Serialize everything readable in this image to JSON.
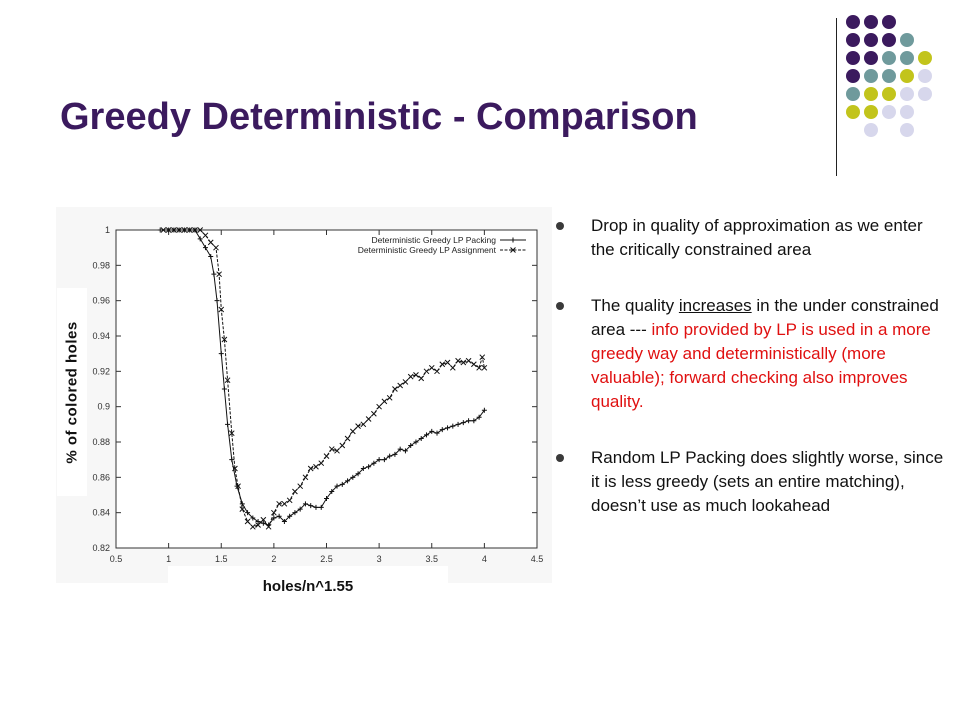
{
  "slide": {
    "title": "Greedy Deterministic - Comparison",
    "accent_colors": [
      "#3b1a5e",
      "#6f9a9c",
      "#c2c41c",
      "#d7d7ec"
    ]
  },
  "bullets": [
    {
      "text": "Drop in quality of approximation as we enter the critically constrained area"
    },
    {
      "pre": "The quality ",
      "underline": "increases",
      "mid": " in the under constrained area --- ",
      "red": "info provided by LP is used in a more greedy way and deterministically (more valuable); forward checking also improves quality."
    },
    {
      "text": "Random LP Packing does slightly worse, since it is less greedy (sets an entire matching), doesn’t use as much lookahead"
    }
  ],
  "chart_data": {
    "type": "line",
    "xlabel": "holes/n^1.55",
    "ylabel": "% of colored holes",
    "xlim": [
      0.5,
      4.5
    ],
    "ylim": [
      0.82,
      1.0
    ],
    "xticks": [
      0.5,
      1,
      1.5,
      2,
      2.5,
      3,
      3.5,
      4,
      4.5
    ],
    "yticks": [
      0.82,
      0.84,
      0.86,
      0.88,
      0.9,
      0.92,
      0.94,
      0.96,
      0.98,
      1
    ],
    "xtick_labels": [
      "0.5",
      "1",
      "1.5",
      "2",
      "2.5",
      "3",
      "3.5",
      "4",
      "4.5"
    ],
    "ytick_labels": [
      "0.82",
      "0.84",
      "0.86",
      "0.88",
      "0.9",
      "0.92",
      "0.94",
      "0.96",
      "0.98",
      "1"
    ],
    "legend_position": "top-right",
    "series": [
      {
        "name": "Deterministic Greedy LP Packing",
        "marker": "plus",
        "points": [
          [
            0.92,
            1.0
          ],
          [
            1.0,
            1.0
          ],
          [
            1.05,
            1.0
          ],
          [
            1.1,
            1.0
          ],
          [
            1.15,
            1.0
          ],
          [
            1.2,
            1.0
          ],
          [
            1.25,
            1.0
          ],
          [
            1.3,
            0.995
          ],
          [
            1.35,
            0.99
          ],
          [
            1.4,
            0.985
          ],
          [
            1.43,
            0.975
          ],
          [
            1.46,
            0.96
          ],
          [
            1.5,
            0.93
          ],
          [
            1.53,
            0.91
          ],
          [
            1.56,
            0.89
          ],
          [
            1.6,
            0.87
          ],
          [
            1.65,
            0.855
          ],
          [
            1.7,
            0.845
          ],
          [
            1.75,
            0.84
          ],
          [
            1.8,
            0.837
          ],
          [
            1.85,
            0.835
          ],
          [
            1.9,
            0.834
          ],
          [
            1.95,
            0.833
          ],
          [
            2.0,
            0.837
          ],
          [
            2.05,
            0.838
          ],
          [
            2.1,
            0.835
          ],
          [
            2.15,
            0.838
          ],
          [
            2.2,
            0.84
          ],
          [
            2.25,
            0.842
          ],
          [
            2.3,
            0.845
          ],
          [
            2.35,
            0.844
          ],
          [
            2.4,
            0.843
          ],
          [
            2.45,
            0.843
          ],
          [
            2.5,
            0.848
          ],
          [
            2.55,
            0.852
          ],
          [
            2.6,
            0.855
          ],
          [
            2.65,
            0.856
          ],
          [
            2.7,
            0.858
          ],
          [
            2.75,
            0.86
          ],
          [
            2.8,
            0.862
          ],
          [
            2.85,
            0.865
          ],
          [
            2.9,
            0.866
          ],
          [
            2.95,
            0.868
          ],
          [
            3.0,
            0.87
          ],
          [
            3.05,
            0.87
          ],
          [
            3.1,
            0.872
          ],
          [
            3.15,
            0.873
          ],
          [
            3.2,
            0.876
          ],
          [
            3.25,
            0.875
          ],
          [
            3.3,
            0.878
          ],
          [
            3.35,
            0.88
          ],
          [
            3.4,
            0.882
          ],
          [
            3.45,
            0.884
          ],
          [
            3.5,
            0.886
          ],
          [
            3.55,
            0.885
          ],
          [
            3.6,
            0.887
          ],
          [
            3.65,
            0.888
          ],
          [
            3.7,
            0.889
          ],
          [
            3.75,
            0.89
          ],
          [
            3.8,
            0.891
          ],
          [
            3.85,
            0.892
          ],
          [
            3.9,
            0.892
          ],
          [
            3.95,
            0.894
          ],
          [
            4.0,
            0.898
          ]
        ]
      },
      {
        "name": "Deterministic Greedy LP Assignment",
        "marker": "cross",
        "points": [
          [
            0.95,
            1.0
          ],
          [
            1.0,
            1.0
          ],
          [
            1.05,
            1.0
          ],
          [
            1.1,
            1.0
          ],
          [
            1.15,
            1.0
          ],
          [
            1.2,
            1.0
          ],
          [
            1.25,
            1.0
          ],
          [
            1.3,
            1.0
          ],
          [
            1.35,
            0.997
          ],
          [
            1.4,
            0.993
          ],
          [
            1.45,
            0.99
          ],
          [
            1.48,
            0.975
          ],
          [
            1.5,
            0.955
          ],
          [
            1.53,
            0.938
          ],
          [
            1.56,
            0.915
          ],
          [
            1.6,
            0.885
          ],
          [
            1.63,
            0.865
          ],
          [
            1.66,
            0.855
          ],
          [
            1.7,
            0.842
          ],
          [
            1.75,
            0.835
          ],
          [
            1.8,
            0.832
          ],
          [
            1.85,
            0.833
          ],
          [
            1.9,
            0.836
          ],
          [
            1.95,
            0.832
          ],
          [
            2.0,
            0.84
          ],
          [
            2.05,
            0.845
          ],
          [
            2.1,
            0.845
          ],
          [
            2.15,
            0.847
          ],
          [
            2.2,
            0.852
          ],
          [
            2.25,
            0.855
          ],
          [
            2.3,
            0.86
          ],
          [
            2.35,
            0.865
          ],
          [
            2.4,
            0.866
          ],
          [
            2.45,
            0.868
          ],
          [
            2.5,
            0.872
          ],
          [
            2.55,
            0.876
          ],
          [
            2.6,
            0.875
          ],
          [
            2.65,
            0.878
          ],
          [
            2.7,
            0.882
          ],
          [
            2.75,
            0.886
          ],
          [
            2.8,
            0.889
          ],
          [
            2.85,
            0.89
          ],
          [
            2.9,
            0.893
          ],
          [
            2.95,
            0.896
          ],
          [
            3.0,
            0.9
          ],
          [
            3.05,
            0.903
          ],
          [
            3.1,
            0.905
          ],
          [
            3.15,
            0.91
          ],
          [
            3.2,
            0.912
          ],
          [
            3.25,
            0.914
          ],
          [
            3.3,
            0.917
          ],
          [
            3.35,
            0.918
          ],
          [
            3.4,
            0.916
          ],
          [
            3.45,
            0.92
          ],
          [
            3.5,
            0.922
          ],
          [
            3.55,
            0.92
          ],
          [
            3.6,
            0.924
          ],
          [
            3.65,
            0.925
          ],
          [
            3.7,
            0.922
          ],
          [
            3.75,
            0.926
          ],
          [
            3.8,
            0.925
          ],
          [
            3.85,
            0.926
          ],
          [
            3.9,
            0.924
          ],
          [
            3.95,
            0.922
          ],
          [
            3.98,
            0.928
          ],
          [
            4.0,
            0.922
          ]
        ]
      }
    ]
  }
}
